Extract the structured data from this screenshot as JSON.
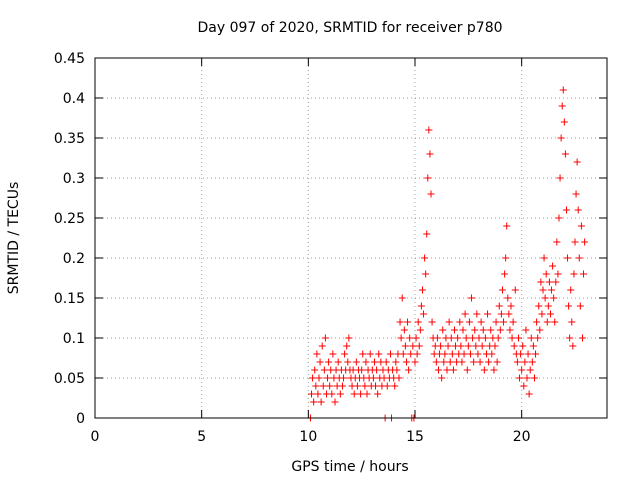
{
  "chart_data": {
    "type": "scatter",
    "title": "Day 097 of 2020, SRMTID for receiver p780",
    "xlabel": "GPS time / hours",
    "ylabel": "SRMTID / TECUs",
    "xlim": [
      0,
      24
    ],
    "ylim": [
      0,
      0.45
    ],
    "xticks": [
      0,
      5,
      10,
      15,
      20
    ],
    "xtick_labels": [
      "0",
      "5",
      "10",
      "15",
      "20"
    ],
    "yticks": [
      0,
      0.05,
      0.1,
      0.15,
      0.2,
      0.25,
      0.3,
      0.35,
      0.4,
      0.45
    ],
    "ytick_labels": [
      "0",
      "0.05",
      "0.1",
      "0.15",
      "0.2",
      "0.25",
      "0.3",
      "0.35",
      "0.4",
      "0.45"
    ],
    "grid": true,
    "marker": "+",
    "series": [
      {
        "name": "SRMTID",
        "color": "#ff0000",
        "points": [
          [
            10.1,
            0.0
          ],
          [
            10.15,
            0.03
          ],
          [
            10.2,
            0.05
          ],
          [
            10.25,
            0.02
          ],
          [
            10.3,
            0.06
          ],
          [
            10.35,
            0.04
          ],
          [
            10.4,
            0.08
          ],
          [
            10.45,
            0.03
          ],
          [
            10.5,
            0.05
          ],
          [
            10.55,
            0.07
          ],
          [
            10.6,
            0.02
          ],
          [
            10.65,
            0.09
          ],
          [
            10.7,
            0.04
          ],
          [
            10.75,
            0.06
          ],
          [
            10.8,
            0.1
          ],
          [
            10.85,
            0.03
          ],
          [
            10.9,
            0.05
          ],
          [
            10.95,
            0.07
          ],
          [
            11.0,
            0.04
          ],
          [
            11.05,
            0.06
          ],
          [
            11.1,
            0.03
          ],
          [
            11.15,
            0.08
          ],
          [
            11.2,
            0.05
          ],
          [
            11.25,
            0.02
          ],
          [
            11.3,
            0.06
          ],
          [
            11.35,
            0.04
          ],
          [
            11.4,
            0.07
          ],
          [
            11.45,
            0.05
          ],
          [
            11.5,
            0.03
          ],
          [
            11.55,
            0.06
          ],
          [
            11.6,
            0.04
          ],
          [
            11.65,
            0.05
          ],
          [
            11.7,
            0.08
          ],
          [
            11.75,
            0.06
          ],
          [
            11.8,
            0.09
          ],
          [
            11.85,
            0.07
          ],
          [
            11.9,
            0.1
          ],
          [
            11.95,
            0.06
          ],
          [
            12.0,
            0.05
          ],
          [
            12.05,
            0.04
          ],
          [
            12.1,
            0.06
          ],
          [
            12.15,
            0.03
          ],
          [
            12.2,
            0.05
          ],
          [
            12.25,
            0.07
          ],
          [
            12.3,
            0.04
          ],
          [
            12.35,
            0.06
          ],
          [
            12.4,
            0.05
          ],
          [
            12.45,
            0.03
          ],
          [
            12.5,
            0.06
          ],
          [
            12.55,
            0.08
          ],
          [
            12.6,
            0.05
          ],
          [
            12.65,
            0.04
          ],
          [
            12.7,
            0.07
          ],
          [
            12.75,
            0.03
          ],
          [
            12.8,
            0.06
          ],
          [
            12.85,
            0.05
          ],
          [
            12.9,
            0.08
          ],
          [
            12.95,
            0.04
          ],
          [
            13.0,
            0.06
          ],
          [
            13.05,
            0.05
          ],
          [
            13.1,
            0.07
          ],
          [
            13.15,
            0.04
          ],
          [
            13.2,
            0.06
          ],
          [
            13.25,
            0.03
          ],
          [
            13.3,
            0.08
          ],
          [
            13.35,
            0.05
          ],
          [
            13.4,
            0.07
          ],
          [
            13.45,
            0.04
          ],
          [
            13.5,
            0.06
          ],
          [
            13.55,
            0.05
          ],
          [
            13.6,
            0.0
          ],
          [
            13.65,
            0.07
          ],
          [
            13.7,
            0.04
          ],
          [
            13.75,
            0.06
          ],
          [
            13.8,
            0.05
          ],
          [
            13.85,
            0.08
          ],
          [
            13.9,
            0.0
          ],
          [
            13.95,
            0.06
          ],
          [
            14.0,
            0.05
          ],
          [
            14.05,
            0.04
          ],
          [
            14.1,
            0.07
          ],
          [
            14.15,
            0.06
          ],
          [
            14.2,
            0.08
          ],
          [
            14.25,
            0.05
          ],
          [
            14.3,
            0.12
          ],
          [
            14.35,
            0.1
          ],
          [
            14.4,
            0.15
          ],
          [
            14.45,
            0.08
          ],
          [
            14.5,
            0.11
          ],
          [
            14.55,
            0.09
          ],
          [
            14.6,
            0.07
          ],
          [
            14.65,
            0.12
          ],
          [
            14.7,
            0.06
          ],
          [
            14.75,
            0.1
          ],
          [
            14.8,
            0.08
          ],
          [
            14.85,
            0.0
          ],
          [
            14.9,
            0.09
          ],
          [
            14.95,
            0.0
          ],
          [
            15.0,
            0.07
          ],
          [
            15.05,
            0.1
          ],
          [
            15.1,
            0.08
          ],
          [
            15.15,
            0.12
          ],
          [
            15.2,
            0.09
          ],
          [
            15.25,
            0.11
          ],
          [
            15.3,
            0.14
          ],
          [
            15.35,
            0.16
          ],
          [
            15.4,
            0.13
          ],
          [
            15.45,
            0.2
          ],
          [
            15.5,
            0.18
          ],
          [
            15.55,
            0.23
          ],
          [
            15.6,
            0.3
          ],
          [
            15.65,
            0.36
          ],
          [
            15.7,
            0.33
          ],
          [
            15.75,
            0.28
          ],
          [
            15.8,
            0.12
          ],
          [
            15.85,
            0.1
          ],
          [
            15.9,
            0.08
          ],
          [
            15.95,
            0.09
          ],
          [
            16.0,
            0.07
          ],
          [
            16.05,
            0.1
          ],
          [
            16.1,
            0.06
          ],
          [
            16.15,
            0.08
          ],
          [
            16.2,
            0.09
          ],
          [
            16.25,
            0.05
          ],
          [
            16.3,
            0.11
          ],
          [
            16.35,
            0.07
          ],
          [
            16.4,
            0.08
          ],
          [
            16.45,
            0.1
          ],
          [
            16.5,
            0.06
          ],
          [
            16.55,
            0.09
          ],
          [
            16.6,
            0.12
          ],
          [
            16.65,
            0.07
          ],
          [
            16.7,
            0.1
          ],
          [
            16.75,
            0.08
          ],
          [
            16.8,
            0.06
          ],
          [
            16.85,
            0.11
          ],
          [
            16.9,
            0.09
          ],
          [
            16.95,
            0.07
          ],
          [
            17.0,
            0.1
          ],
          [
            17.05,
            0.08
          ],
          [
            17.1,
            0.12
          ],
          [
            17.15,
            0.09
          ],
          [
            17.2,
            0.07
          ],
          [
            17.25,
            0.11
          ],
          [
            17.3,
            0.08
          ],
          [
            17.35,
            0.13
          ],
          [
            17.4,
            0.1
          ],
          [
            17.45,
            0.06
          ],
          [
            17.5,
            0.09
          ],
          [
            17.55,
            0.12
          ],
          [
            17.6,
            0.08
          ],
          [
            17.65,
            0.15
          ],
          [
            17.7,
            0.1
          ],
          [
            17.75,
            0.07
          ],
          [
            17.8,
            0.11
          ],
          [
            17.85,
            0.09
          ],
          [
            17.9,
            0.13
          ],
          [
            17.95,
            0.08
          ],
          [
            18.0,
            0.1
          ],
          [
            18.05,
            0.07
          ],
          [
            18.1,
            0.12
          ],
          [
            18.15,
            0.09
          ],
          [
            18.2,
            0.11
          ],
          [
            18.25,
            0.06
          ],
          [
            18.3,
            0.1
          ],
          [
            18.35,
            0.08
          ],
          [
            18.4,
            0.13
          ],
          [
            18.45,
            0.07
          ],
          [
            18.5,
            0.09
          ],
          [
            18.55,
            0.11
          ],
          [
            18.6,
            0.08
          ],
          [
            18.65,
            0.1
          ],
          [
            18.7,
            0.06
          ],
          [
            18.75,
            0.09
          ],
          [
            18.8,
            0.12
          ],
          [
            18.85,
            0.07
          ],
          [
            18.9,
            0.1
          ],
          [
            18.95,
            0.14
          ],
          [
            19.0,
            0.11
          ],
          [
            19.05,
            0.13
          ],
          [
            19.1,
            0.16
          ],
          [
            19.15,
            0.12
          ],
          [
            19.2,
            0.18
          ],
          [
            19.25,
            0.2
          ],
          [
            19.3,
            0.24
          ],
          [
            19.35,
            0.15
          ],
          [
            19.4,
            0.13
          ],
          [
            19.45,
            0.11
          ],
          [
            19.5,
            0.14
          ],
          [
            19.55,
            0.1
          ],
          [
            19.6,
            0.12
          ],
          [
            19.65,
            0.09
          ],
          [
            19.7,
            0.16
          ],
          [
            19.75,
            0.08
          ],
          [
            19.8,
            0.07
          ],
          [
            19.85,
            0.1
          ],
          [
            19.9,
            0.05
          ],
          [
            19.95,
            0.08
          ],
          [
            20.0,
            0.06
          ],
          [
            20.05,
            0.09
          ],
          [
            20.1,
            0.04
          ],
          [
            20.15,
            0.07
          ],
          [
            20.2,
            0.11
          ],
          [
            20.25,
            0.05
          ],
          [
            20.3,
            0.08
          ],
          [
            20.35,
            0.03
          ],
          [
            20.4,
            0.06
          ],
          [
            20.45,
            0.1
          ],
          [
            20.5,
            0.07
          ],
          [
            20.55,
            0.09
          ],
          [
            20.6,
            0.05
          ],
          [
            20.65,
            0.08
          ],
          [
            20.7,
            0.12
          ],
          [
            20.75,
            0.1
          ],
          [
            20.8,
            0.14
          ],
          [
            20.85,
            0.11
          ],
          [
            20.9,
            0.17
          ],
          [
            20.95,
            0.13
          ],
          [
            21.0,
            0.16
          ],
          [
            21.05,
            0.2
          ],
          [
            21.1,
            0.15
          ],
          [
            21.15,
            0.18
          ],
          [
            21.2,
            0.12
          ],
          [
            21.25,
            0.14
          ],
          [
            21.3,
            0.17
          ],
          [
            21.35,
            0.13
          ],
          [
            21.4,
            0.16
          ],
          [
            21.45,
            0.19
          ],
          [
            21.5,
            0.15
          ],
          [
            21.55,
            0.12
          ],
          [
            21.6,
            0.17
          ],
          [
            21.65,
            0.22
          ],
          [
            21.7,
            0.18
          ],
          [
            21.75,
            0.25
          ],
          [
            21.8,
            0.3
          ],
          [
            21.85,
            0.35
          ],
          [
            21.9,
            0.39
          ],
          [
            21.95,
            0.41
          ],
          [
            22.0,
            0.37
          ],
          [
            22.05,
            0.33
          ],
          [
            22.1,
            0.26
          ],
          [
            22.15,
            0.2
          ],
          [
            22.2,
            0.14
          ],
          [
            22.25,
            0.1
          ],
          [
            22.3,
            0.16
          ],
          [
            22.35,
            0.12
          ],
          [
            22.4,
            0.09
          ],
          [
            22.45,
            0.18
          ],
          [
            22.5,
            0.22
          ],
          [
            22.55,
            0.28
          ],
          [
            22.6,
            0.32
          ],
          [
            22.65,
            0.26
          ],
          [
            22.7,
            0.2
          ],
          [
            22.75,
            0.14
          ],
          [
            22.8,
            0.24
          ],
          [
            22.85,
            0.1
          ],
          [
            22.9,
            0.18
          ],
          [
            22.95,
            0.22
          ]
        ]
      }
    ]
  }
}
